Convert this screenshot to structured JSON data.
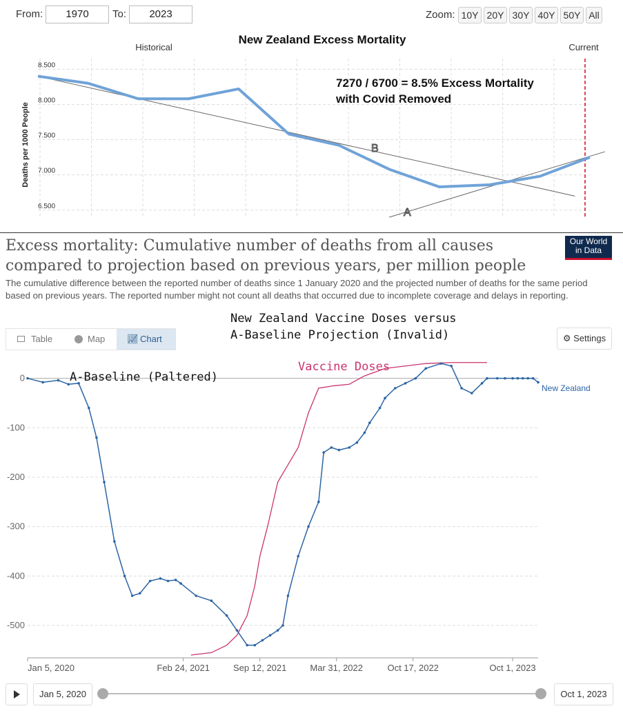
{
  "top_controls": {
    "from_label": "From:",
    "from_value": "1970",
    "to_label": "To:",
    "to_value": "2023",
    "zoom_label": "Zoom:",
    "zoom_options": [
      "10Y",
      "20Y",
      "30Y",
      "40Y",
      "50Y",
      "All"
    ]
  },
  "top_chart": {
    "title": "New Zealand Excess Mortality",
    "historical_label": "Historical",
    "current_label": "Current",
    "annotation_line1": "7270 / 6700 = 8.5% Excess Mortality",
    "annotation_line2": "with Covid Removed",
    "trend_label_a": "A",
    "trend_label_b": "B"
  },
  "owid": {
    "title": "Excess mortality: Cumulative number of deaths from all causes compared to projection based on previous years, per million people",
    "subtitle": "The cumulative difference between the reported number of deaths since 1 January 2020 and the projected number of deaths for the same period based on previous years. The reported number might not count all deaths that occurred due to incomplete coverage and delays in reporting.",
    "logo_line1": "Our World",
    "logo_line2": "in Data",
    "tabs": [
      "Table",
      "Map",
      "Chart"
    ],
    "active_tab": "Chart",
    "settings_label": "Settings",
    "note_vaccine_title_line1": "New Zealand Vaccine Doses versus",
    "note_vaccine_title_line2": "A-Baseline Projection (Invalid)",
    "note_baseline": "A-Baseline (Paltered)",
    "note_vaccine_doses": "Vaccine Doses",
    "timeline_start": "Jan 5, 2020",
    "timeline_end": "Oct 1, 2023"
  },
  "colors": {
    "top_line": "#6fa3d8",
    "nz_line": "#2a64a4",
    "vaccine_line": "#c9336f",
    "current_marker": "#e0454f"
  },
  "chart_data": [
    {
      "type": "line",
      "title": "New Zealand Excess Mortality",
      "ylabel": "Deaths per 1000 People",
      "ylim": [
        6.4,
        8.65
      ],
      "yticks": [
        "8.500",
        "8.000",
        "7.500",
        "7.000",
        "6.500"
      ],
      "grid": true,
      "series": [
        {
          "values": [
            8.4,
            8.3,
            8.08,
            8.08,
            8.22,
            7.58,
            7.42,
            7.08,
            6.83,
            6.86,
            6.98,
            7.25
          ]
        }
      ],
      "trend_lines": [
        {
          "label": "B",
          "x": [
            0.0,
            10.7
          ],
          "y": [
            8.4,
            6.7
          ]
        },
        {
          "label": "A",
          "x": [
            7.0,
            11.3
          ],
          "y": [
            6.4,
            7.33
          ]
        }
      ]
    },
    {
      "type": "line",
      "x_ticks": [
        "Jan 5, 2020",
        "Feb 24, 2021",
        "Sep 12, 2021",
        "Mar 31, 2022",
        "Oct 17, 2022",
        "Oct 1, 2023"
      ],
      "yticks": [
        "0",
        "-100",
        "-200",
        "-300",
        "-400",
        "-500"
      ],
      "ylim": [
        -560,
        40
      ],
      "grid": true,
      "series": [
        {
          "name": "New Zealand",
          "x": [
            0,
            0.03,
            0.06,
            0.08,
            0.1,
            0.12,
            0.135,
            0.15,
            0.17,
            0.19,
            0.205,
            0.22,
            0.24,
            0.26,
            0.275,
            0.29,
            0.3,
            0.33,
            0.36,
            0.39,
            0.41,
            0.43,
            0.445,
            0.46,
            0.475,
            0.49,
            0.5,
            0.51,
            0.53,
            0.55,
            0.57,
            0.58,
            0.595,
            0.61,
            0.63,
            0.645,
            0.66,
            0.67,
            0.69,
            0.7,
            0.72,
            0.74,
            0.76,
            0.78,
            0.81,
            0.83,
            0.85,
            0.87,
            0.89,
            0.9,
            0.92,
            0.935,
            0.95,
            0.96,
            0.97,
            0.98,
            0.99,
            1.0
          ],
          "values": [
            0,
            -8,
            -4,
            -12,
            -10,
            -60,
            -120,
            -210,
            -330,
            -400,
            -440,
            -435,
            -410,
            -405,
            -410,
            -408,
            -415,
            -440,
            -450,
            -480,
            -510,
            -540,
            -540,
            -530,
            -520,
            -510,
            -500,
            -440,
            -360,
            -300,
            -250,
            -150,
            -140,
            -145,
            -140,
            -130,
            -110,
            -90,
            -60,
            -40,
            -20,
            -10,
            0,
            20,
            30,
            25,
            -20,
            -30,
            -10,
            0,
            0,
            0,
            0,
            0,
            0,
            0,
            0,
            -8
          ]
        },
        {
          "name": "",
          "x": [
            0.32,
            0.36,
            0.39,
            0.41,
            0.43,
            0.445,
            0.455,
            0.47,
            0.49,
            0.51,
            0.53,
            0.55,
            0.57,
            0.6,
            0.63,
            0.66,
            0.7,
            0.74,
            0.78,
            0.83,
            0.87,
            0.9
          ],
          "values": [
            -560,
            -555,
            -540,
            -520,
            -480,
            -420,
            -360,
            -300,
            -210,
            -175,
            -140,
            -70,
            -20,
            -15,
            -12,
            5,
            20,
            25,
            30,
            32,
            32,
            32
          ]
        }
      ]
    }
  ]
}
